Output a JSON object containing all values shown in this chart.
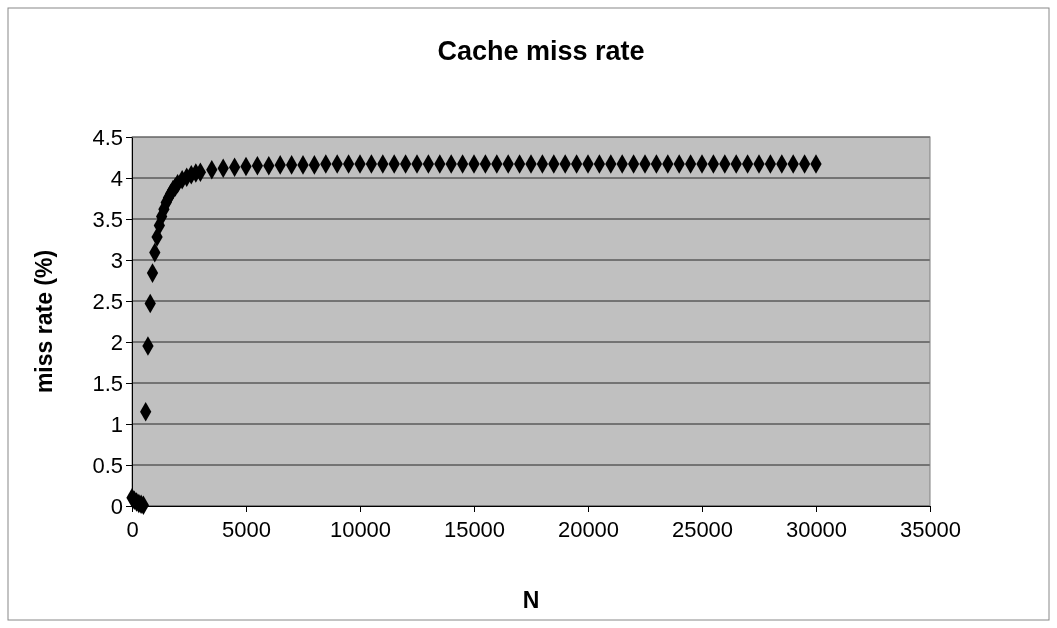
{
  "chart_data": {
    "type": "scatter",
    "title": "Cache miss rate",
    "xlabel": "N",
    "ylabel": "miss rate (%)",
    "xlim": [
      0,
      35000
    ],
    "xticks": [
      0,
      5000,
      10000,
      15000,
      20000,
      25000,
      30000,
      35000
    ],
    "ylim": [
      0,
      4.5
    ],
    "yticks": [
      0,
      0.5,
      1,
      1.5,
      2,
      2.5,
      3,
      3.5,
      4,
      4.5
    ],
    "grid": "y",
    "marker": "diamond",
    "series": [
      {
        "color": "#000000",
        "x": [
          0,
          100,
          200,
          300,
          400,
          500,
          600,
          700,
          800,
          900,
          1000,
          1100,
          1200,
          1300,
          1400,
          1500,
          1600,
          1700,
          1800,
          1900,
          2000,
          2200,
          2400,
          2600,
          2800,
          3000,
          3500,
          4000,
          4500,
          5000,
          5500,
          6000,
          6500,
          7000,
          7500,
          8000,
          8500,
          9000,
          9500,
          10000,
          10500,
          11000,
          11500,
          12000,
          12500,
          13000,
          13500,
          14000,
          14500,
          15000,
          15500,
          16000,
          16500,
          17000,
          17500,
          18000,
          18500,
          19000,
          19500,
          20000,
          20500,
          21000,
          21500,
          22000,
          22500,
          23000,
          23500,
          24000,
          24500,
          25000,
          25500,
          26000,
          26500,
          27000,
          27500,
          28000,
          28500,
          29000,
          29500,
          30000
        ],
        "values": [
          0.1,
          0.07,
          0.05,
          0.03,
          0.02,
          0.01,
          1.15,
          1.95,
          2.47,
          2.84,
          3.09,
          3.28,
          3.42,
          3.53,
          3.62,
          3.7,
          3.76,
          3.81,
          3.86,
          3.89,
          3.93,
          3.98,
          4.01,
          4.04,
          4.06,
          4.07,
          4.1,
          4.12,
          4.13,
          4.14,
          4.15,
          4.15,
          4.16,
          4.16,
          4.16,
          4.16,
          4.17,
          4.17,
          4.17,
          4.17,
          4.17,
          4.17,
          4.17,
          4.17,
          4.17,
          4.17,
          4.17,
          4.17,
          4.17,
          4.17,
          4.17,
          4.17,
          4.17,
          4.17,
          4.17,
          4.17,
          4.17,
          4.17,
          4.17,
          4.17,
          4.17,
          4.17,
          4.17,
          4.17,
          4.17,
          4.17,
          4.17,
          4.17,
          4.17,
          4.17,
          4.17,
          4.17,
          4.17,
          4.17,
          4.17,
          4.17,
          4.17,
          4.17,
          4.17,
          4.17
        ]
      }
    ]
  }
}
